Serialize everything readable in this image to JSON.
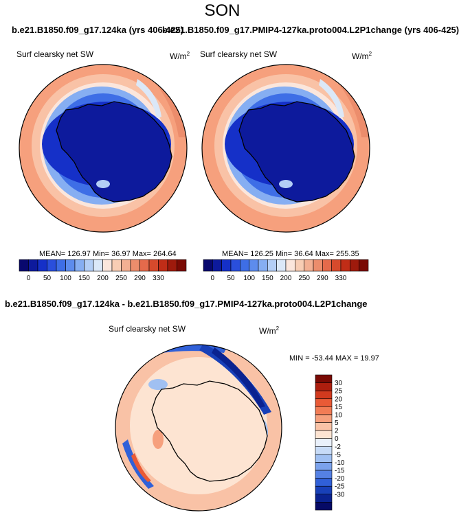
{
  "page": {
    "title": "SON"
  },
  "top": {
    "title_left": "b.e21.B1850.f09_g17.124ka (yrs 406-425)",
    "title_right": "b.e21.B1850.f09_g17.PMIP4-127ka.proto004.L2P1change (yrs 406-425)"
  },
  "panels": [
    {
      "label": "Surf clearsky net SW",
      "units_base": "W/m",
      "units_exp": "2",
      "stats": "MEAN= 126.97  Min=  36.97  Max= 264.64"
    },
    {
      "label": "Surf clearsky net SW",
      "units_base": "W/m",
      "units_exp": "2",
      "stats": "MEAN= 126.25  Min=  36.64  Max= 255.35"
    }
  ],
  "colorbar_top": {
    "colors": [
      "#08086e",
      "#0d1a9c",
      "#1530c8",
      "#2a4fdc",
      "#3e6ee6",
      "#5d8ced",
      "#86aef2",
      "#b3cef6",
      "#dbe8f8",
      "#fbe6dc",
      "#f8cdb4",
      "#f3b093",
      "#ec8d6c",
      "#e56a4b",
      "#d74a2c",
      "#c02d17",
      "#9e1a0c",
      "#7a0a04"
    ],
    "labels": [
      "0",
      "50",
      "100",
      "150",
      "200",
      "250",
      "290",
      "330"
    ]
  },
  "difference": {
    "title": "b.e21.B1850.f09_g17.124ka - b.e21.B1850.f09_g17.PMIP4-127ka.proto004.L2P1change",
    "label": "Surf clearsky net SW",
    "units_base": "W/m",
    "units_exp": "2",
    "stats": "MIN = -53.44 MAX =  19.97"
  },
  "colorbar_diff": {
    "colors": [
      "#7a0a04",
      "#ad1e0e",
      "#d23a1e",
      "#e95a36",
      "#f27c55",
      "#f6a07d",
      "#f9c2a6",
      "#fde4d2",
      "#eaf1fb",
      "#c7dbf7",
      "#a0c0f2",
      "#7ba2ec",
      "#5581e4",
      "#3060d8",
      "#1840b8",
      "#0a2290",
      "#060a66"
    ],
    "labels": [
      "30",
      "25",
      "20",
      "15",
      "10",
      "5",
      "2",
      "0",
      "-2",
      "-5",
      "-10",
      "-15",
      "-20",
      "-25",
      "-30"
    ]
  }
}
